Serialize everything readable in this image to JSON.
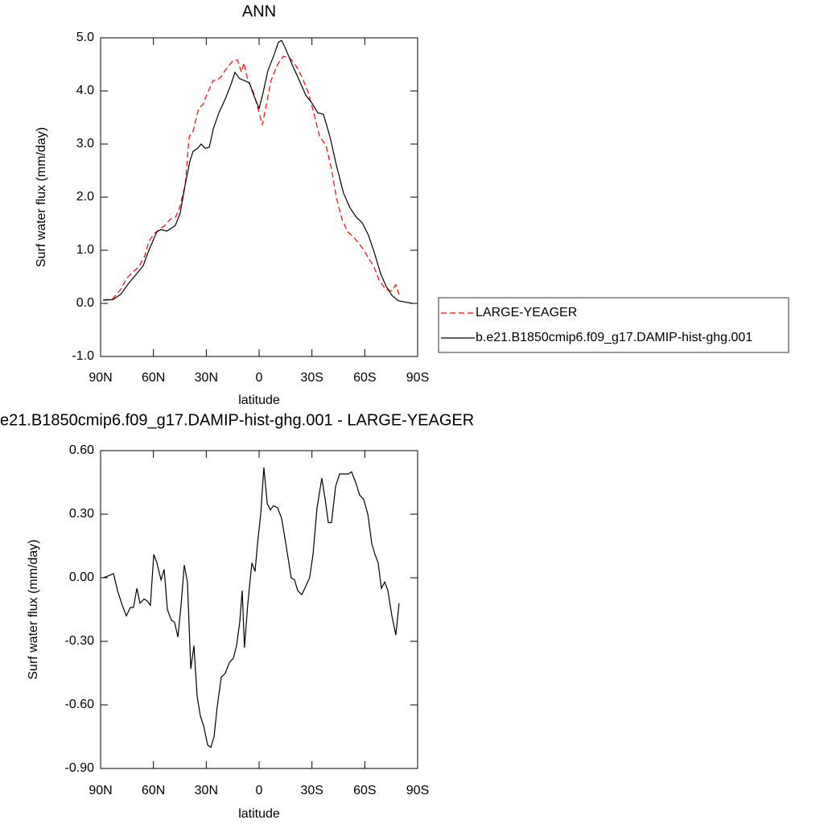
{
  "chart_data": [
    {
      "type": "line",
      "title": "ANN",
      "x_label": "latitude",
      "y_label": "Surf water flux (mm/day)",
      "xlim": [
        90,
        -90
      ],
      "xticks": [
        {
          "value": 90,
          "label": "90N"
        },
        {
          "value": 60,
          "label": "60N"
        },
        {
          "value": 30,
          "label": "30N"
        },
        0,
        {
          "value": -30,
          "label": "30S"
        },
        {
          "value": -60,
          "label": "60S"
        },
        {
          "value": -90,
          "label": "90S"
        }
      ],
      "ylim": [
        -1,
        5
      ],
      "yticks": [
        {
          "value": -1,
          "label": "-1.0"
        },
        {
          "value": 0,
          "label": "0.0"
        },
        {
          "value": 1,
          "label": "1.0"
        },
        {
          "value": 2,
          "label": "2.0"
        },
        {
          "value": 3,
          "label": "3.0"
        },
        {
          "value": 4,
          "label": "4.0"
        },
        {
          "value": 5,
          "label": "5.0"
        }
      ],
      "legend": "right",
      "series": [
        {
          "name": "LARGE-YEAGER",
          "color": "#ff0000",
          "dashed": true,
          "x": [
            88.6,
            83,
            78.6,
            75,
            71.7,
            68.5,
            64.9,
            62.6,
            59.4,
            56.7,
            53.5,
            50.3,
            47.5,
            45.2,
            42,
            39.7,
            37.5,
            34.3,
            32,
            29.2,
            26,
            23.8,
            21.5,
            19.2,
            14.6,
            12.3,
            10,
            8.7,
            6.4,
            3.2,
            0,
            -1.8,
            -4.1,
            -6.8,
            -10.5,
            -13.7,
            -17.4,
            -21,
            -24.2,
            -27.9,
            -31,
            -34.3,
            -37.9,
            -41.1,
            -43.8,
            -47,
            -50.2,
            -53.9,
            -58.5,
            -62,
            -65.3,
            -68.5,
            -72.2,
            -75.4,
            -77.6,
            -80
          ],
          "values": [
            0.06,
            0.09,
            0.26,
            0.48,
            0.59,
            0.68,
            0.89,
            1.17,
            1.32,
            1.39,
            1.47,
            1.59,
            1.62,
            1.8,
            2.23,
            3.14,
            3.24,
            3.67,
            3.74,
            3.97,
            4.2,
            4.2,
            4.27,
            4.39,
            4.58,
            4.58,
            4.35,
            4.53,
            4.2,
            3.97,
            3.59,
            3.36,
            3.74,
            4.2,
            4.5,
            4.65,
            4.62,
            4.47,
            4.27,
            3.97,
            3.59,
            3.14,
            2.98,
            2.53,
            2.0,
            1.59,
            1.35,
            1.24,
            1.05,
            0.86,
            0.68,
            0.41,
            0.26,
            0.23,
            0.35,
            0.11
          ]
        },
        {
          "name": "b.e21.B1850cmip6.f09_g17.DAMIP-hist-ghg.001",
          "color": "#000000",
          "dashed": false,
          "x": [
            88.6,
            83,
            78.6,
            74,
            69.4,
            65.8,
            62.6,
            58,
            55.7,
            52.5,
            50,
            47.5,
            44.8,
            42,
            39.3,
            37.5,
            35.2,
            32.9,
            30.6,
            28.3,
            26,
            22.8,
            19.2,
            16,
            13.7,
            11,
            8.7,
            5.5,
            2.7,
            0,
            -2.3,
            -5,
            -8.2,
            -11,
            -12.8,
            -15,
            -18.7,
            -22.8,
            -26.5,
            -30,
            -33.3,
            -36.5,
            -40.2,
            -43.8,
            -47.9,
            -51.6,
            -55.3,
            -58.5,
            -62,
            -65.3,
            -69,
            -72,
            -75.4,
            -79,
            -83.6,
            -87.2
          ],
          "values": [
            0.06,
            0.07,
            0.17,
            0.38,
            0.56,
            0.71,
            1.0,
            1.35,
            1.39,
            1.36,
            1.41,
            1.47,
            1.7,
            2.23,
            2.68,
            2.86,
            2.91,
            3.0,
            2.92,
            2.94,
            3.29,
            3.59,
            3.85,
            4.12,
            4.35,
            4.23,
            4.2,
            4.15,
            3.89,
            3.67,
            3.97,
            4.38,
            4.65,
            4.92,
            4.95,
            4.8,
            4.5,
            4.2,
            3.92,
            3.77,
            3.59,
            3.56,
            3.14,
            2.61,
            2.08,
            1.8,
            1.62,
            1.52,
            1.29,
            0.97,
            0.56,
            0.33,
            0.15,
            0.05,
            0.02,
            0.0
          ]
        }
      ]
    },
    {
      "type": "line",
      "title": "e21.B1850cmip6.f09_g17.DAMIP-hist-ghg.001 - LARGE-YEAGER",
      "x_label": "latitude",
      "y_label": "Surf water flux (mm/day)",
      "xlim": [
        90,
        -90
      ],
      "xticks": [
        {
          "value": 90,
          "label": "90N"
        },
        {
          "value": 60,
          "label": "60N"
        },
        {
          "value": 30,
          "label": "30N"
        },
        0,
        {
          "value": -30,
          "label": "30S"
        },
        {
          "value": -60,
          "label": "60S"
        },
        {
          "value": -90,
          "label": "90S"
        }
      ],
      "ylim": [
        -0.9,
        0.6
      ],
      "yticks": [
        {
          "value": -0.9,
          "label": "-0.90"
        },
        {
          "value": -0.6,
          "label": "-0.60"
        },
        {
          "value": -0.3,
          "label": "-0.30"
        },
        {
          "value": 0,
          "label": "0.00"
        },
        {
          "value": 0.3,
          "label": "0.30"
        },
        {
          "value": 0.6,
          "label": "0.60"
        }
      ],
      "color": "#000000",
      "x": [
        88.6,
        85.4,
        82.7,
        80.4,
        77.7,
        75.4,
        73.1,
        71.3,
        69.4,
        67.6,
        65.3,
        63.5,
        61.7,
        59.8,
        58,
        55.7,
        53.9,
        52.1,
        49.8,
        48,
        46.1,
        44.3,
        42.5,
        40.7,
        38.8,
        37,
        35.2,
        33.4,
        31.5,
        29.2,
        27.4,
        25.6,
        23.8,
        21.5,
        19.2,
        16.9,
        14.6,
        12.8,
        11,
        9.6,
        8.3,
        6.4,
        4.1,
        2.3,
        0.9,
        -0.9,
        -2.7,
        -4.6,
        -6.4,
        -8.2,
        -10.5,
        -12.8,
        -15,
        -16.9,
        -18.2,
        -20.1,
        -21.9,
        -24.2,
        -26.5,
        -28.7,
        -30.6,
        -32.9,
        -35.6,
        -37.5,
        -39.3,
        -41.1,
        -43.4,
        -45.7,
        -48.4,
        -50.7,
        -52.5,
        -54.8,
        -57.1,
        -59.4,
        -61.7,
        -64,
        -65.8,
        -67.6,
        -69.4,
        -71.3,
        -73.1,
        -75.4,
        -77.6,
        -79.5
      ],
      "values": [
        0.0,
        0.01,
        0.02,
        -0.06,
        -0.13,
        -0.18,
        -0.14,
        -0.14,
        -0.05,
        -0.12,
        -0.1,
        -0.11,
        -0.13,
        0.11,
        0.07,
        -0.01,
        0.04,
        -0.15,
        -0.2,
        -0.21,
        -0.28,
        -0.13,
        0.06,
        -0.02,
        -0.43,
        -0.32,
        -0.56,
        -0.65,
        -0.7,
        -0.79,
        -0.8,
        -0.75,
        -0.61,
        -0.47,
        -0.45,
        -0.4,
        -0.38,
        -0.32,
        -0.21,
        -0.06,
        -0.33,
        -0.12,
        0.07,
        0.03,
        0.16,
        0.3,
        0.52,
        0.35,
        0.32,
        0.34,
        0.33,
        0.28,
        0.17,
        0.07,
        0.0,
        -0.01,
        -0.06,
        -0.08,
        -0.04,
        0.0,
        0.11,
        0.33,
        0.47,
        0.37,
        0.26,
        0.26,
        0.43,
        0.49,
        0.49,
        0.49,
        0.5,
        0.45,
        0.39,
        0.37,
        0.3,
        0.16,
        0.11,
        0.07,
        -0.05,
        -0.02,
        -0.06,
        -0.18,
        -0.27,
        -0.12
      ]
    }
  ]
}
